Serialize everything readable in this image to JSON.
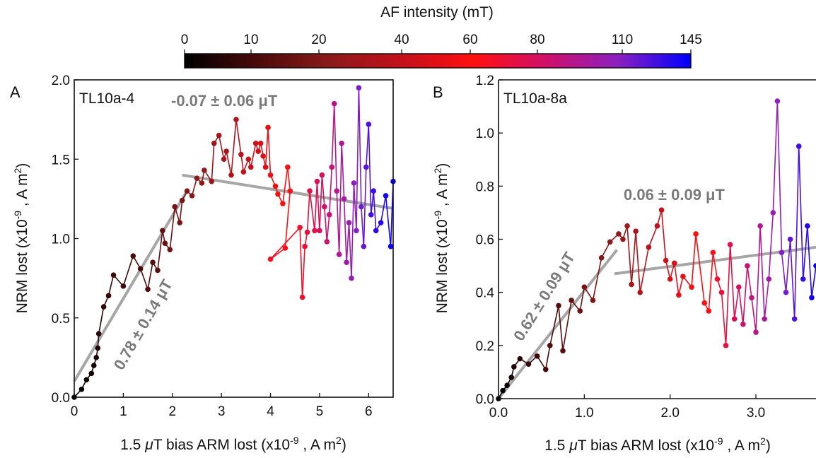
{
  "colorbar": {
    "title": "AF intensity (mT)",
    "ticks": [
      "0",
      "10",
      "20",
      "40",
      "60",
      "80",
      "110",
      "145"
    ],
    "stops": [
      "#000000",
      "#4a0a0a",
      "#8b1a1a",
      "#c4101a",
      "#ff1010",
      "#d0106a",
      "#8a20c0",
      "#0000ff"
    ]
  },
  "chart_data": [
    {
      "type": "scatter",
      "panel_label": "A",
      "sample_label": "TL10a-4",
      "xlabel": "1.5 μT bias ARM lost (x10^-9 , A m^2)",
      "ylabel": "NRM lost (x10^-9 , A m^2)",
      "xlim": [
        0,
        6.5
      ],
      "ylim": [
        0,
        2.0
      ],
      "xticks": [
        "0",
        "1",
        "2",
        "3",
        "4",
        "5",
        "6"
      ],
      "yticks": [
        "0.0",
        "0.5",
        "1.0",
        "1.5",
        "2.0"
      ],
      "fits": [
        {
          "label": "0.78 ± 0.14 μT",
          "x": [
            0.0,
            2.3
          ],
          "y": [
            0.1,
            1.3
          ],
          "color": "#a6a6a6"
        },
        {
          "label": "-0.07 ± 0.06 μT",
          "x": [
            2.2,
            6.5
          ],
          "y": [
            1.4,
            1.19
          ],
          "color": "#a6a6a6"
        }
      ],
      "points": [
        [
          0.0,
          0.0
        ],
        [
          0.15,
          0.05
        ],
        [
          0.25,
          0.11
        ],
        [
          0.35,
          0.15
        ],
        [
          0.4,
          0.2
        ],
        [
          0.45,
          0.25
        ],
        [
          0.48,
          0.31
        ],
        [
          0.5,
          0.4
        ],
        [
          0.6,
          0.57
        ],
        [
          0.7,
          0.64
        ],
        [
          0.8,
          0.77
        ],
        [
          1.0,
          0.7
        ],
        [
          1.2,
          0.89
        ],
        [
          1.35,
          0.81
        ],
        [
          1.5,
          0.68
        ],
        [
          1.6,
          0.85
        ],
        [
          1.7,
          0.8
        ],
        [
          1.8,
          1.05
        ],
        [
          1.85,
          0.97
        ],
        [
          1.95,
          0.93
        ],
        [
          2.05,
          1.2
        ],
        [
          2.15,
          1.1
        ],
        [
          2.2,
          1.24
        ],
        [
          2.3,
          1.3
        ],
        [
          2.4,
          1.27
        ],
        [
          2.5,
          1.38
        ],
        [
          2.6,
          1.35
        ],
        [
          2.65,
          1.43
        ],
        [
          2.8,
          1.36
        ],
        [
          2.85,
          1.6
        ],
        [
          2.95,
          1.65
        ],
        [
          3.05,
          1.5
        ],
        [
          3.1,
          1.55
        ],
        [
          3.2,
          1.4
        ],
        [
          3.3,
          1.75
        ],
        [
          3.4,
          1.53
        ],
        [
          3.45,
          1.42
        ],
        [
          3.55,
          1.5
        ],
        [
          3.6,
          1.45
        ],
        [
          3.7,
          1.6
        ],
        [
          3.75,
          1.55
        ],
        [
          3.8,
          1.6
        ],
        [
          3.85,
          1.52
        ],
        [
          3.9,
          1.45
        ],
        [
          3.95,
          1.7
        ],
        [
          4.0,
          1.4
        ],
        [
          4.1,
          1.33
        ],
        [
          4.15,
          1.28
        ],
        [
          4.25,
          1.22
        ],
        [
          4.35,
          1.45
        ],
        [
          4.4,
          1.3
        ],
        [
          4.3,
          0.94
        ],
        [
          4.0,
          0.87
        ],
        [
          4.6,
          1.07
        ],
        [
          4.65,
          0.63
        ],
        [
          4.7,
          0.95
        ],
        [
          4.75,
          1.04
        ],
        [
          4.8,
          1.3
        ],
        [
          4.9,
          1.05
        ],
        [
          4.95,
          1.36
        ],
        [
          5.0,
          1.05
        ],
        [
          5.05,
          1.4
        ],
        [
          5.1,
          1.2
        ],
        [
          5.15,
          0.98
        ],
        [
          5.2,
          1.15
        ],
        [
          5.25,
          1.45
        ],
        [
          5.3,
          1.85
        ],
        [
          5.35,
          1.3
        ],
        [
          5.4,
          0.9
        ],
        [
          5.45,
          1.6
        ],
        [
          5.5,
          1.25
        ],
        [
          5.55,
          0.85
        ],
        [
          5.6,
          1.1
        ],
        [
          5.65,
          0.75
        ],
        [
          5.7,
          1.35
        ],
        [
          5.75,
          1.05
        ],
        [
          5.8,
          1.95
        ],
        [
          5.85,
          1.2
        ],
        [
          5.9,
          0.95
        ],
        [
          5.95,
          1.45
        ],
        [
          6.0,
          1.72
        ],
        [
          6.05,
          1.15
        ],
        [
          6.1,
          1.3
        ],
        [
          6.15,
          1.05
        ],
        [
          6.25,
          1.1
        ],
        [
          6.35,
          1.27
        ],
        [
          6.45,
          0.95
        ],
        [
          6.5,
          1.36
        ]
      ]
    },
    {
      "type": "scatter",
      "panel_label": "B",
      "sample_label": "TL10a-8a",
      "xlabel": "1.5 μT bias ARM lost (x10^-9 , A m^2)",
      "ylabel": "NRM lost (x10^-9 , A m^2)",
      "xlim": [
        0,
        3.7
      ],
      "ylim": [
        0,
        1.2
      ],
      "xticks": [
        "0.0",
        "1.0",
        "2.0",
        "3.0"
      ],
      "yticks": [
        "0.0",
        "0.2",
        "0.4",
        "0.6",
        "0.8",
        "1.0",
        "1.2"
      ],
      "fits": [
        {
          "label": "0.62 ± 0.09 μT",
          "x": [
            0.0,
            1.38
          ],
          "y": [
            0.0,
            0.56
          ],
          "color": "#a6a6a6"
        },
        {
          "label": "0.06 ± 0.09 μT",
          "x": [
            1.35,
            3.7
          ],
          "y": [
            0.47,
            0.57
          ],
          "color": "#a6a6a6"
        }
      ],
      "points": [
        [
          0.0,
          0.0
        ],
        [
          0.05,
          0.03
        ],
        [
          0.1,
          0.05
        ],
        [
          0.15,
          0.08
        ],
        [
          0.18,
          0.12
        ],
        [
          0.25,
          0.15
        ],
        [
          0.35,
          0.13
        ],
        [
          0.45,
          0.16
        ],
        [
          0.55,
          0.11
        ],
        [
          0.6,
          0.2
        ],
        [
          0.7,
          0.35
        ],
        [
          0.75,
          0.18
        ],
        [
          0.85,
          0.37
        ],
        [
          0.95,
          0.33
        ],
        [
          1.0,
          0.42
        ],
        [
          1.1,
          0.37
        ],
        [
          1.2,
          0.53
        ],
        [
          1.3,
          0.59
        ],
        [
          1.4,
          0.62
        ],
        [
          1.45,
          0.6
        ],
        [
          1.5,
          0.65
        ],
        [
          1.55,
          0.43
        ],
        [
          1.6,
          0.63
        ],
        [
          1.65,
          0.4
        ],
        [
          1.75,
          0.57
        ],
        [
          1.85,
          0.65
        ],
        [
          1.9,
          0.71
        ],
        [
          1.95,
          0.52
        ],
        [
          2.0,
          0.45
        ],
        [
          2.05,
          0.51
        ],
        [
          2.1,
          0.39
        ],
        [
          2.15,
          0.46
        ],
        [
          2.25,
          0.42
        ],
        [
          2.3,
          0.62
        ],
        [
          2.4,
          0.36
        ],
        [
          2.45,
          0.33
        ],
        [
          2.5,
          0.55
        ],
        [
          2.55,
          0.45
        ],
        [
          2.6,
          0.4
        ],
        [
          2.65,
          0.2
        ],
        [
          2.7,
          0.58
        ],
        [
          2.75,
          0.3
        ],
        [
          2.8,
          0.42
        ],
        [
          2.85,
          0.28
        ],
        [
          2.9,
          0.5
        ],
        [
          2.95,
          0.38
        ],
        [
          3.0,
          0.25
        ],
        [
          3.05,
          0.65
        ],
        [
          3.1,
          0.3
        ],
        [
          3.15,
          0.45
        ],
        [
          3.2,
          0.7
        ],
        [
          3.25,
          1.12
        ],
        [
          3.3,
          0.55
        ],
        [
          3.35,
          0.4
        ],
        [
          3.4,
          0.6
        ],
        [
          3.45,
          0.3
        ],
        [
          3.5,
          0.95
        ],
        [
          3.55,
          0.45
        ],
        [
          3.6,
          0.65
        ],
        [
          3.65,
          0.38
        ],
        [
          3.7,
          0.5
        ]
      ]
    }
  ]
}
